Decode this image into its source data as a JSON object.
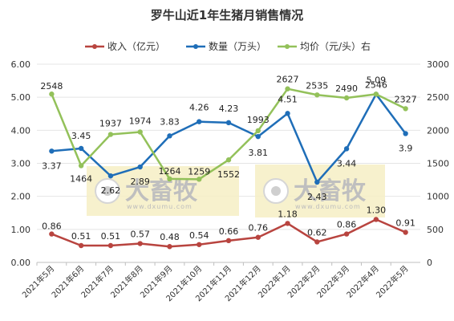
{
  "chart_data": {
    "type": "line",
    "title": "罗牛山近1年生猪月销售情况",
    "categories": [
      "2021年5月",
      "2021年6月",
      "2021年7月",
      "2021年8月",
      "2021年9月",
      "2021年10月",
      "2021年11月",
      "2021年12月",
      "2022年1月",
      "2022年2月",
      "2022年3月",
      "2022年4月",
      "2022年5月"
    ],
    "y_left": {
      "min": 0,
      "max": 6,
      "step": 1,
      "tick_labels": [
        "0.00",
        "1.00",
        "2.00",
        "3.00",
        "4.00",
        "5.00",
        "6.00"
      ]
    },
    "y_right": {
      "min": 0,
      "max": 3000,
      "step": 500,
      "tick_labels": [
        "0",
        "500",
        "1000",
        "1500",
        "2000",
        "2500",
        "3000"
      ]
    },
    "grid": true,
    "legend_position": "top",
    "series": [
      {
        "name": "收入（亿元）",
        "axis": "left",
        "color": "#b8443f",
        "values": [
          0.86,
          0.51,
          0.51,
          0.57,
          0.48,
          0.54,
          0.66,
          0.76,
          1.18,
          0.62,
          0.86,
          1.3,
          0.91
        ],
        "labels": [
          "0.86",
          "0.51",
          "0.51",
          "0.57",
          "0.48",
          "0.54",
          "0.66",
          "0.76",
          "1.18",
          "0.62",
          "0.86",
          "1.30",
          "0.91"
        ]
      },
      {
        "name": "数量（万头）",
        "axis": "left",
        "color": "#1f6eb8",
        "values": [
          3.37,
          3.45,
          2.62,
          2.89,
          3.83,
          4.26,
          4.23,
          3.81,
          4.51,
          2.43,
          3.44,
          5.09,
          3.9
        ],
        "labels": [
          "3.37",
          "3.45",
          "2.62",
          "2.89",
          "3.83",
          "4.26",
          "4.23",
          "3.81",
          "4.51",
          "2.43",
          "3.44",
          "5.09",
          "3.9"
        ]
      },
      {
        "name": "均价（元/头）右",
        "axis": "right",
        "color": "#93c15a",
        "values": [
          2548,
          1464,
          1937,
          1974,
          1264,
          1259,
          1552,
          1993,
          2627,
          2535,
          2490,
          2546,
          2327
        ],
        "labels": [
          "2548",
          "1464",
          "1937",
          "1974",
          "1264",
          "1259",
          "1552",
          "1993",
          "2627",
          "2535",
          "2490",
          "2546",
          "2327"
        ]
      }
    ],
    "watermark": {
      "text": "大畜牧",
      "sub": "www.dxumu.com"
    }
  }
}
